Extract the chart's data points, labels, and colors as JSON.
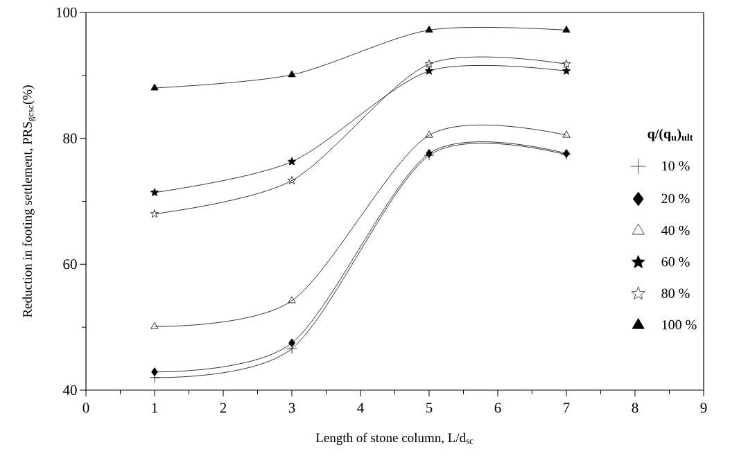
{
  "chart_data": {
    "type": "line",
    "xlabel": "Length of stone column, L/d$_{sc}$",
    "ylabel": "Reduction in footing settlement, PRS$_{gcsc}$(%)",
    "legend_title": "q/(q$_{u}$)$_{ult}$",
    "legend": "right",
    "grid": false,
    "line_style": "solid",
    "x": [
      1,
      3,
      5,
      7
    ],
    "xlim": [
      0,
      9
    ],
    "xticks": [
      0,
      1,
      2,
      3,
      4,
      5,
      6,
      7,
      8,
      9
    ],
    "ylim": [
      40,
      100
    ],
    "yticks": [
      40,
      60,
      80,
      100
    ],
    "series": [
      {
        "name": "10 %",
        "color": "#000000",
        "marker": "cross",
        "values": [
          42.0,
          46.6,
          77.3,
          77.4
        ]
      },
      {
        "name": "20 %",
        "color": "#000000",
        "marker": "diamond",
        "values": [
          42.9,
          47.5,
          77.6,
          77.6
        ]
      },
      {
        "name": "40 %",
        "color": "#000000",
        "marker": "triangle",
        "values": [
          50.1,
          54.2,
          80.5,
          80.5
        ]
      },
      {
        "name": "60 %",
        "color": "#000000",
        "marker": "star",
        "values": [
          71.4,
          76.3,
          90.7,
          90.7
        ]
      },
      {
        "name": "80 %",
        "color": "#000000",
        "marker": "star",
        "values": [
          68.0,
          73.3,
          91.8,
          91.8
        ]
      },
      {
        "name": "100 %",
        "color": "#000000",
        "marker": "triangle",
        "values": [
          88.0,
          90.1,
          97.2,
          97.2
        ]
      }
    ]
  }
}
